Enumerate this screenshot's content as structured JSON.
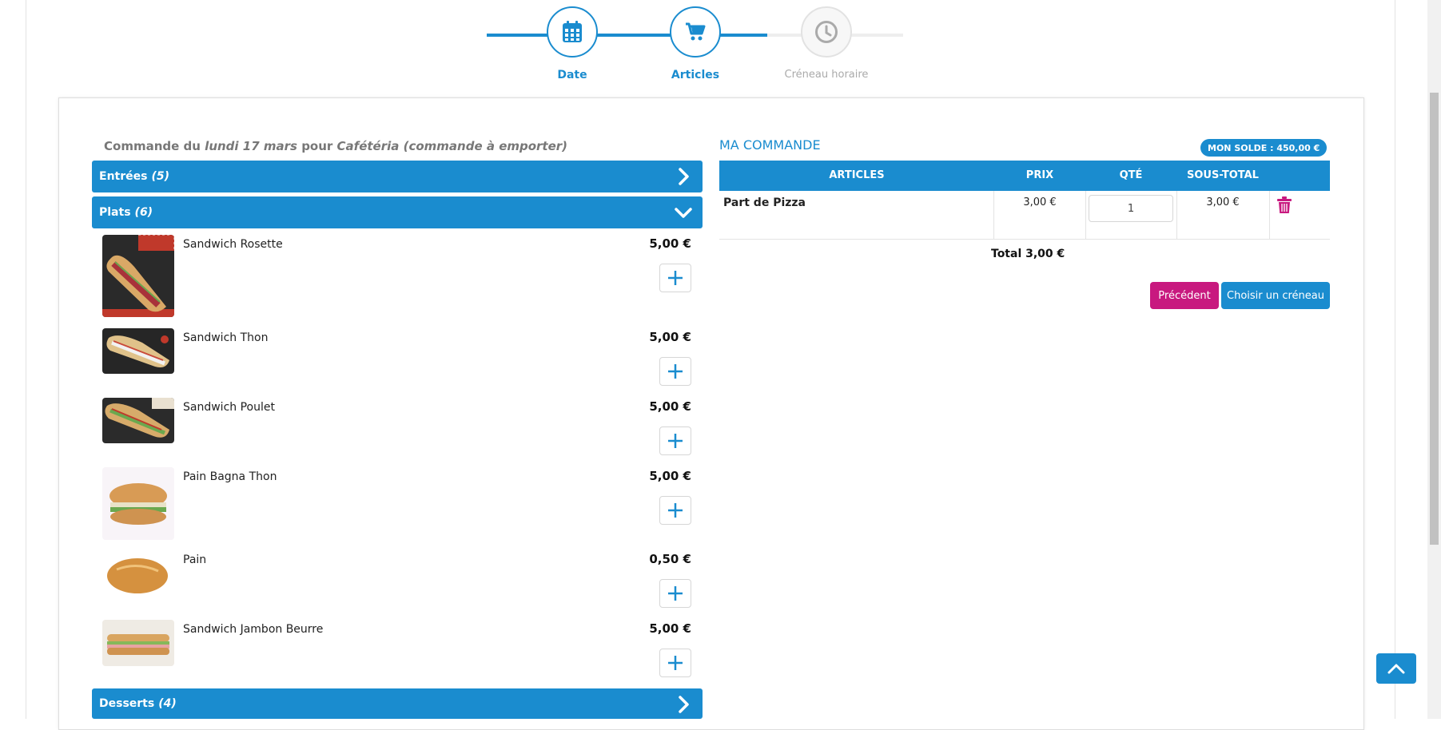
{
  "stepper": {
    "steps": [
      {
        "label": "Date",
        "icon": "calendar-icon",
        "state": "done"
      },
      {
        "label": "Articles",
        "icon": "cart-icon",
        "state": "active"
      },
      {
        "label": "Créneau horaire",
        "icon": "clock-icon",
        "state": "todo"
      }
    ]
  },
  "order_heading": {
    "prefix": "Commande du",
    "date": "lundi 17 mars",
    "middle": "pour",
    "place": "Cafétéria (commande à emporter)"
  },
  "categories": {
    "entrees": {
      "label": "Entrées",
      "count": "(5)",
      "state": "collapsed"
    },
    "plats": {
      "label": "Plats",
      "count": "(6)",
      "state": "expanded"
    },
    "desserts": {
      "label": "Desserts",
      "count": "(4)",
      "state": "collapsed"
    }
  },
  "products": [
    {
      "name": "Sandwich Rosette",
      "price": "5,00 €"
    },
    {
      "name": "Sandwich Thon",
      "price": "5,00 €"
    },
    {
      "name": "Sandwich Poulet",
      "price": "5,00 €"
    },
    {
      "name": "Pain Bagna Thon",
      "price": "5,00 €"
    },
    {
      "name": "Pain",
      "price": "0,50 €"
    },
    {
      "name": "Sandwich Jambon Beurre",
      "price": "5,00 €"
    }
  ],
  "my_order": {
    "title": "MA COMMANDE",
    "balance": "MON SOLDE : 450,00 €",
    "columns": [
      "ARTICLES",
      "PRIX",
      "QTÉ",
      "SOUS-TOTAL"
    ],
    "rows": [
      {
        "article": "Part de Pizza",
        "price": "3,00 €",
        "qty": "1",
        "subtotal": "3,00 €"
      }
    ],
    "total": "Total 3,00 €",
    "prev_label": "Précédent",
    "next_label": "Choisir un créneau"
  },
  "colors": {
    "primary": "#1a8ccf",
    "accent": "#c8197f",
    "muted": "#aaaaaa"
  }
}
